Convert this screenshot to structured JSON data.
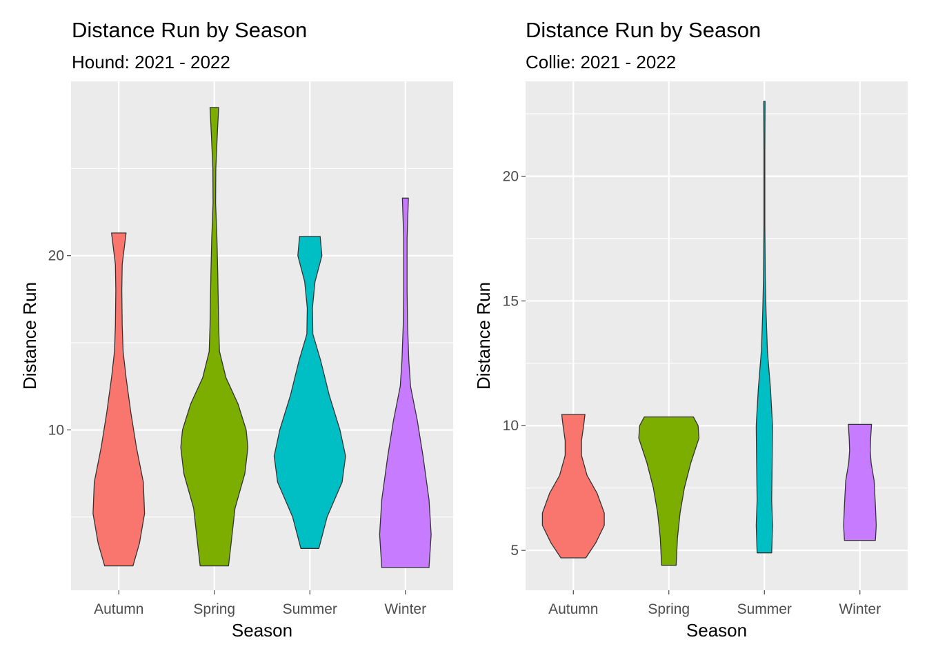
{
  "chart_data": [
    {
      "type": "violin",
      "title": "Distance Run by Season",
      "subtitle": "Hound: 2021 - 2022",
      "xlabel": "Season",
      "ylabel": "Distance Run",
      "categories": [
        "Autumn",
        "Spring",
        "Summer",
        "Winter"
      ],
      "yticks": [
        10,
        20
      ],
      "ylim": [
        0.8,
        30.0
      ],
      "grid": true,
      "series": [
        {
          "fill": "#F8766D",
          "ymin": 2.2,
          "ymax": 21.3,
          "profile": [
            [
              2.2,
              0.33
            ],
            [
              3.5,
              0.48
            ],
            [
              5.2,
              0.6
            ],
            [
              7.0,
              0.57
            ],
            [
              9.0,
              0.41
            ],
            [
              11.0,
              0.28
            ],
            [
              13.0,
              0.17
            ],
            [
              14.5,
              0.1
            ],
            [
              16.0,
              0.08
            ],
            [
              18.0,
              0.07
            ],
            [
              19.5,
              0.08
            ],
            [
              21.3,
              0.17
            ]
          ]
        },
        {
          "fill": "#7CAE00",
          "ymin": 2.2,
          "ymax": 28.5,
          "profile": [
            [
              2.2,
              0.33
            ],
            [
              3.5,
              0.39
            ],
            [
              5.5,
              0.48
            ],
            [
              7.5,
              0.71
            ],
            [
              9.0,
              0.78
            ],
            [
              10.0,
              0.74
            ],
            [
              11.5,
              0.55
            ],
            [
              13.0,
              0.27
            ],
            [
              14.5,
              0.12
            ],
            [
              16.0,
              0.1
            ],
            [
              19.0,
              0.08
            ],
            [
              21.0,
              0.06
            ],
            [
              23.0,
              0.03
            ],
            [
              25.0,
              0.035
            ],
            [
              27.0,
              0.07
            ],
            [
              28.5,
              0.1
            ]
          ]
        },
        {
          "fill": "#00BFC4",
          "ymin": 3.2,
          "ymax": 21.1,
          "profile": [
            [
              3.2,
              0.21
            ],
            [
              5.0,
              0.4
            ],
            [
              7.0,
              0.75
            ],
            [
              8.5,
              0.83
            ],
            [
              10.0,
              0.7
            ],
            [
              12.0,
              0.45
            ],
            [
              14.0,
              0.25
            ],
            [
              15.5,
              0.07
            ],
            [
              17.0,
              0.06
            ],
            [
              18.5,
              0.12
            ],
            [
              20.0,
              0.28
            ],
            [
              21.1,
              0.24
            ]
          ]
        },
        {
          "fill": "#C77CFF",
          "ymin": 2.1,
          "ymax": 23.3,
          "profile": [
            [
              2.1,
              0.55
            ],
            [
              4.0,
              0.6
            ],
            [
              6.0,
              0.55
            ],
            [
              8.5,
              0.41
            ],
            [
              10.5,
              0.28
            ],
            [
              12.5,
              0.12
            ],
            [
              14.0,
              0.08
            ],
            [
              16.0,
              0.05
            ],
            [
              18.0,
              0.04
            ],
            [
              21.0,
              0.04
            ],
            [
              23.3,
              0.07
            ]
          ]
        }
      ]
    },
    {
      "type": "violin",
      "title": "Distance Run by Season",
      "subtitle": "Collie: 2021 - 2022",
      "xlabel": "Season",
      "ylabel": "Distance Run",
      "categories": [
        "Autumn",
        "Spring",
        "Summer",
        "Winter"
      ],
      "yticks": [
        5,
        10,
        15,
        20
      ],
      "ylim": [
        3.4,
        23.8
      ],
      "grid": true,
      "series": [
        {
          "fill": "#F8766D",
          "ymin": 4.7,
          "ymax": 10.45,
          "profile": [
            [
              4.7,
              0.29
            ],
            [
              5.3,
              0.52
            ],
            [
              6.0,
              0.72
            ],
            [
              6.5,
              0.72
            ],
            [
              7.3,
              0.55
            ],
            [
              8.0,
              0.32
            ],
            [
              8.8,
              0.19
            ],
            [
              9.4,
              0.19
            ],
            [
              10.0,
              0.24
            ],
            [
              10.45,
              0.27
            ]
          ]
        },
        {
          "fill": "#7CAE00",
          "ymin": 4.4,
          "ymax": 10.35,
          "profile": [
            [
              4.4,
              0.17
            ],
            [
              5.5,
              0.2
            ],
            [
              6.5,
              0.26
            ],
            [
              7.5,
              0.36
            ],
            [
              8.5,
              0.51
            ],
            [
              9.5,
              0.7
            ],
            [
              10.0,
              0.68
            ],
            [
              10.35,
              0.57
            ]
          ]
        },
        {
          "fill": "#00BFC4",
          "ymin": 4.9,
          "ymax": 23.0,
          "profile": [
            [
              4.9,
              0.17
            ],
            [
              6.0,
              0.19
            ],
            [
              7.0,
              0.17
            ],
            [
              8.5,
              0.18
            ],
            [
              10.0,
              0.19
            ],
            [
              11.5,
              0.14
            ],
            [
              13.0,
              0.07
            ],
            [
              14.5,
              0.04
            ],
            [
              16.0,
              0.02
            ],
            [
              18.0,
              0.01
            ],
            [
              21.0,
              0.01
            ],
            [
              23.0,
              0.015
            ]
          ]
        },
        {
          "fill": "#C77CFF",
          "ymin": 5.4,
          "ymax": 10.05,
          "profile": [
            [
              5.4,
              0.36
            ],
            [
              6.0,
              0.38
            ],
            [
              6.8,
              0.36
            ],
            [
              7.8,
              0.33
            ],
            [
              8.5,
              0.26
            ],
            [
              9.0,
              0.24
            ],
            [
              9.5,
              0.25
            ],
            [
              10.05,
              0.27
            ]
          ]
        }
      ]
    }
  ]
}
